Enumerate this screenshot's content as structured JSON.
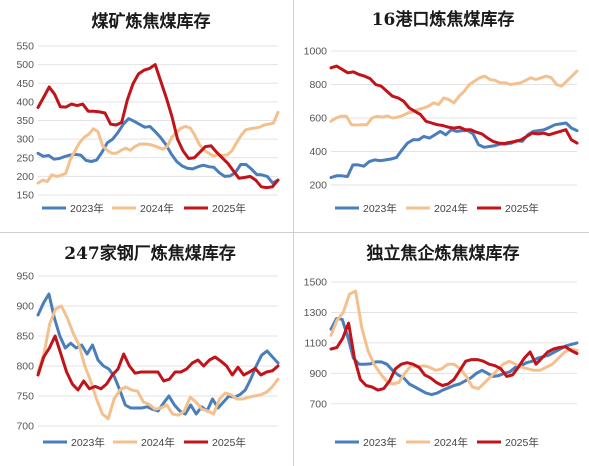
{
  "chart_data": [
    {
      "type": "line",
      "title": "煤矿炼焦煤库存",
      "ylim": [
        150,
        550
      ],
      "yticks": [
        150,
        200,
        250,
        300,
        350,
        400,
        450,
        500,
        550
      ],
      "legend_position": "bottom",
      "grid": true,
      "series": [
        {
          "name": "2023年",
          "color": "#4a7ebb",
          "values": [
            262,
            254,
            256,
            246,
            248,
            253,
            257,
            259,
            257,
            243,
            240,
            244,
            265,
            290,
            300,
            318,
            340,
            355,
            348,
            340,
            332,
            334,
            320,
            304,
            285,
            260,
            240,
            228,
            222,
            220,
            226,
            230,
            226,
            224,
            210,
            200,
            201,
            210,
            232,
            232,
            220,
            205,
            204,
            200,
            182,
            190
          ]
        },
        {
          "name": "2024年",
          "color": "#f4c08e",
          "values": [
            182,
            190,
            186,
            204,
            200,
            203,
            208,
            245,
            268,
            290,
            305,
            313,
            328,
            320,
            282,
            270,
            262,
            262,
            270,
            276,
            270,
            280,
            286,
            287,
            286,
            283,
            278,
            273,
            280,
            305,
            318,
            330,
            334,
            330,
            310,
            285,
            270,
            262,
            255,
            258,
            256,
            258,
            268,
            290,
            310,
            325,
            328,
            330,
            332,
            338,
            340,
            343,
            372
          ]
        },
        {
          "name": "2025年",
          "color": "#c0141a",
          "values": [
            385,
            412,
            440,
            420,
            387,
            386,
            394,
            390,
            394,
            375,
            375,
            373,
            370,
            340,
            338,
            345,
            405,
            448,
            475,
            485,
            490,
            500,
            455,
            410,
            360,
            300,
            268,
            248,
            250,
            265,
            280,
            282,
            265,
            250,
            235,
            215,
            195,
            197,
            200,
            190,
            172,
            170,
            172,
            190
          ]
        }
      ]
    },
    {
      "type": "line",
      "title": "16港口炼焦煤库存",
      "ylim": [
        200,
        1000
      ],
      "yticks": [
        200,
        400,
        600,
        800,
        1000
      ],
      "legend_position": "bottom",
      "grid": true,
      "series": [
        {
          "name": "2023年",
          "color": "#4a7ebb",
          "values": [
            245,
            255,
            255,
            250,
            320,
            320,
            312,
            340,
            350,
            345,
            350,
            355,
            365,
            410,
            450,
            470,
            470,
            490,
            480,
            500,
            520,
            500,
            530,
            520,
            525,
            525,
            505,
            440,
            425,
            430,
            435,
            445,
            445,
            450,
            465,
            460,
            500,
            520,
            525,
            530,
            545,
            560,
            565,
            570,
            540,
            525
          ]
        },
        {
          "name": "2024年",
          "color": "#f4c08e",
          "values": [
            580,
            600,
            610,
            610,
            560,
            558,
            560,
            560,
            600,
            610,
            605,
            612,
            600,
            605,
            615,
            630,
            640,
            650,
            660,
            670,
            690,
            680,
            720,
            710,
            690,
            730,
            760,
            800,
            820,
            840,
            850,
            830,
            825,
            810,
            810,
            800,
            805,
            810,
            825,
            840,
            830,
            840,
            850,
            840,
            800,
            790,
            820,
            850,
            880
          ]
        },
        {
          "name": "2025年",
          "color": "#c0141a",
          "values": [
            900,
            910,
            890,
            870,
            875,
            860,
            850,
            835,
            800,
            790,
            760,
            730,
            720,
            700,
            660,
            640,
            620,
            580,
            570,
            560,
            555,
            545,
            540,
            545,
            530,
            530,
            515,
            505,
            480,
            460,
            450,
            448,
            455,
            460,
            470,
            490,
            510,
            505,
            510,
            500,
            510,
            520,
            530,
            470,
            450
          ]
        }
      ]
    },
    {
      "type": "line",
      "title": "247家钢厂炼焦煤库存",
      "ylim": [
        700,
        950
      ],
      "yticks": [
        700,
        750,
        800,
        850,
        900,
        950
      ],
      "legend_position": "bottom",
      "grid": true,
      "series": [
        {
          "name": "2023年",
          "color": "#4a7ebb",
          "values": [
            885,
            905,
            920,
            880,
            850,
            830,
            838,
            830,
            835,
            820,
            835,
            810,
            800,
            795,
            782,
            760,
            735,
            730,
            730,
            730,
            732,
            728,
            725,
            738,
            750,
            735,
            725,
            720,
            735,
            720,
            732,
            725,
            745,
            730,
            740,
            750,
            748,
            752,
            760,
            778,
            800,
            818,
            825,
            815,
            805
          ]
        },
        {
          "name": "2024年",
          "color": "#f4c08e",
          "values": [
            790,
            820,
            870,
            895,
            900,
            880,
            855,
            835,
            800,
            775,
            745,
            720,
            712,
            745,
            760,
            765,
            760,
            758,
            740,
            736,
            728,
            730,
            735,
            720,
            718,
            725,
            748,
            740,
            728,
            725,
            720,
            745,
            755,
            752,
            745,
            745,
            748,
            750,
            752,
            756,
            765,
            778
          ]
        },
        {
          "name": "2025年",
          "color": "#c0141a",
          "values": [
            785,
            815,
            830,
            850,
            820,
            790,
            770,
            760,
            775,
            762,
            766,
            762,
            770,
            785,
            795,
            820,
            800,
            788,
            790,
            790,
            790,
            790,
            775,
            778,
            790,
            790,
            795,
            805,
            810,
            800,
            810,
            815,
            808,
            800,
            785,
            798,
            785,
            790,
            796,
            785,
            790,
            792,
            800
          ]
        }
      ]
    },
    {
      "type": "line",
      "title": "独立焦企炼焦煤库存",
      "ylim": [
        600,
        1500
      ],
      "yticks": [
        700,
        900,
        1100,
        1300,
        1500
      ],
      "legend_position": "bottom",
      "grid": true,
      "series": [
        {
          "name": "2023年",
          "color": "#4a7ebb",
          "values": [
            1190,
            1260,
            1255,
            1140,
            1000,
            960,
            960,
            962,
            975,
            975,
            960,
            920,
            890,
            870,
            830,
            810,
            790,
            770,
            760,
            770,
            790,
            805,
            820,
            830,
            850,
            870,
            900,
            920,
            900,
            880,
            885,
            900,
            910,
            940,
            950,
            970,
            980,
            1000,
            1010,
            1020,
            1040,
            1060,
            1080,
            1090,
            1100
          ]
        },
        {
          "name": "2024年",
          "color": "#f4c08e",
          "values": [
            1150,
            1250,
            1300,
            1420,
            1440,
            1200,
            1050,
            960,
            900,
            850,
            830,
            840,
            900,
            950,
            940,
            950,
            940,
            920,
            930,
            960,
            960,
            930,
            880,
            810,
            800,
            840,
            880,
            920,
            960,
            980,
            960,
            940,
            930,
            920,
            920,
            940,
            960,
            1000,
            1040,
            1060,
            1050
          ]
        },
        {
          "name": "2025年",
          "color": "#c0141a",
          "values": [
            1060,
            1070,
            1130,
            1230,
            1000,
            860,
            820,
            810,
            790,
            800,
            850,
            930,
            960,
            970,
            960,
            940,
            890,
            870,
            840,
            820,
            830,
            860,
            920,
            980,
            990,
            990,
            980,
            960,
            950,
            930,
            880,
            890,
            940,
            1000,
            1040,
            960,
            1000,
            1040,
            1060,
            1070,
            1075,
            1050,
            1030
          ]
        }
      ]
    }
  ]
}
